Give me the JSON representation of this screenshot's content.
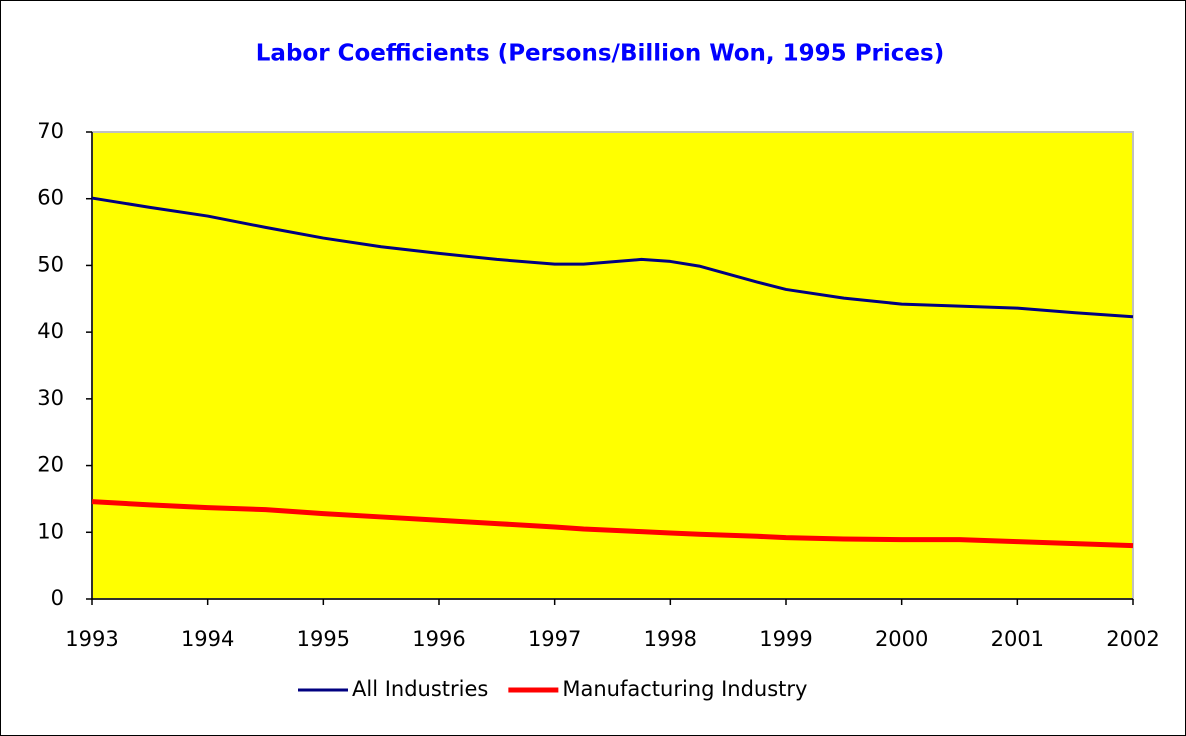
{
  "chart_data": {
    "type": "line",
    "title": "Labor Coefficients (Persons/Billion Won, 1995 Prices)",
    "x": [
      1993,
      1993.5,
      1994,
      1994.5,
      1995,
      1995.5,
      1996,
      1996.5,
      1997,
      1997.25,
      1997.75,
      1998,
      1998.25,
      1998.75,
      1999,
      1999.5,
      2000,
      2000.5,
      2001,
      2001.5,
      2002
    ],
    "series": [
      {
        "name": "All Industries",
        "color": "#000080",
        "values": [
          60.1,
          58.7,
          57.4,
          55.7,
          54.1,
          52.8,
          51.8,
          50.9,
          50.2,
          50.2,
          50.9,
          50.6,
          49.9,
          47.5,
          46.4,
          45.1,
          44.2,
          43.9,
          43.6,
          42.9,
          42.3
        ]
      },
      {
        "name": "Manufacturing Industry",
        "color": "#ff0000",
        "values": [
          14.6,
          14.1,
          13.7,
          13.4,
          12.8,
          12.3,
          11.8,
          11.3,
          10.8,
          10.5,
          10.1,
          9.9,
          9.7,
          9.4,
          9.2,
          9.0,
          8.9,
          8.9,
          8.6,
          8.3,
          8.0
        ]
      }
    ],
    "xlim": [
      1993,
      2002
    ],
    "xticks": [
      1993,
      1994,
      1995,
      1996,
      1997,
      1998,
      1999,
      2000,
      2001,
      2002
    ],
    "ylim": [
      0,
      70
    ],
    "yticks": [
      0,
      10,
      20,
      30,
      40,
      50,
      60,
      70
    ],
    "plot_background": "#ffff00",
    "title_color": "#0000ff",
    "legend": "bottom"
  }
}
